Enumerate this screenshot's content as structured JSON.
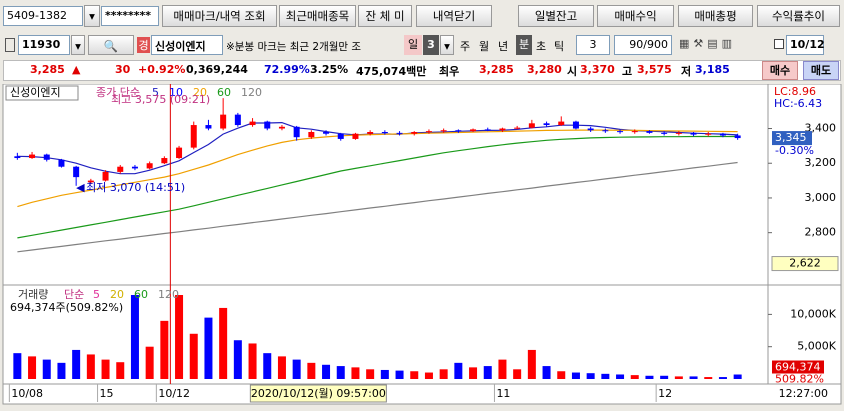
{
  "toolbar": {
    "account": "5409-1382",
    "password": "********",
    "buttons": [
      "매매마크/내역 조회",
      "최근매매종목",
      "잔 체 미",
      "내역닫기",
      "일별잔고",
      "매매수익",
      "매매총평",
      "수익률추이"
    ],
    "code": "11930",
    "badge": "경",
    "stock_name": "신성이엔지",
    "note": "※분봉 마크는 최근 2개월만 조",
    "period": "일",
    "period_num": "3",
    "tabs": [
      "주",
      "월",
      "년",
      "분",
      "초",
      "틱"
    ],
    "interval": "3",
    "count": "90/900",
    "date": "10/12"
  },
  "quote": {
    "price": "3,285",
    "arrow": "▲",
    "change": "30",
    "change_pct": "+0.92%",
    "volume": "0,369,244",
    "ratio": "72.99%",
    "turnover": "3.25%",
    "amount": "475,074백만",
    "best": "최우",
    "ask": "3,285",
    "bid": "3,280",
    "open_label": "시",
    "open": "3,370",
    "high_label": "고",
    "high": "3,575",
    "low_label": "저",
    "low": "3,185",
    "buy": "매수",
    "sell": "매도"
  },
  "crosshair": {
    "time": "2020/10/12(월) 09:57:00",
    "right_time": "12:27:00"
  },
  "chart_data": [
    {
      "type": "candlestick",
      "title": "신성이엔지",
      "legend_prefix": "종가 단순",
      "legend_extra": {
        "name": "10",
        "color": "#0000ff"
      },
      "ylim": [
        2510,
        3645
      ],
      "yticks": [
        {
          "value": 3400,
          "label": "3,400"
        },
        {
          "value": 3200,
          "label": "3,200"
        },
        {
          "value": 3000,
          "label": "3,000"
        },
        {
          "value": 2800,
          "label": "2,800"
        }
      ],
      "up_color": "#ff0000",
      "down_color": "#0000ff",
      "open": [
        3240,
        3230,
        3250,
        3220,
        3180,
        3090,
        3100,
        3150,
        3180,
        3170,
        3200,
        3230,
        3290,
        3420,
        3400,
        3480,
        3420,
        3440,
        3400,
        3410,
        3350,
        3380,
        3370,
        3340,
        3370,
        3380,
        3375,
        3370,
        3380,
        3385,
        3390,
        3385,
        3395,
        3390,
        3400,
        3405,
        3430,
        3420,
        3440,
        3400,
        3390,
        3385,
        3380,
        3385,
        3375,
        3370,
        3375,
        3365,
        3370,
        3360
      ],
      "high": [
        3260,
        3265,
        3255,
        3225,
        3185,
        3110,
        3160,
        3190,
        3190,
        3210,
        3240,
        3300,
        3440,
        3450,
        3575,
        3490,
        3460,
        3445,
        3420,
        3415,
        3390,
        3390,
        3375,
        3375,
        3390,
        3390,
        3385,
        3385,
        3395,
        3400,
        3395,
        3400,
        3405,
        3405,
        3415,
        3450,
        3440,
        3470,
        3445,
        3410,
        3400,
        3395,
        3395,
        3390,
        3385,
        3385,
        3380,
        3380,
        3375,
        3370
      ],
      "low": [
        3220,
        3225,
        3210,
        3175,
        3070,
        3080,
        3095,
        3140,
        3160,
        3165,
        3195,
        3225,
        3280,
        3390,
        3390,
        3410,
        3410,
        3390,
        3390,
        3330,
        3340,
        3360,
        3330,
        3335,
        3360,
        3365,
        3360,
        3360,
        3370,
        3375,
        3375,
        3380,
        3385,
        3380,
        3395,
        3400,
        3410,
        3415,
        3395,
        3380,
        3375,
        3370,
        3370,
        3370,
        3360,
        3360,
        3355,
        3355,
        3350,
        3335
      ],
      "close": [
        3230,
        3250,
        3220,
        3180,
        3120,
        3100,
        3150,
        3180,
        3170,
        3200,
        3230,
        3290,
        3420,
        3400,
        3480,
        3420,
        3440,
        3400,
        3410,
        3350,
        3380,
        3370,
        3340,
        3370,
        3380,
        3375,
        3370,
        3380,
        3385,
        3390,
        3385,
        3395,
        3390,
        3400,
        3405,
        3430,
        3420,
        3440,
        3400,
        3390,
        3385,
        3380,
        3385,
        3375,
        3370,
        3375,
        3365,
        3370,
        3360,
        3345
      ],
      "series": [
        {
          "name": "5",
          "color": "#2020c0",
          "values": [
            3240,
            3238,
            3232,
            3220,
            3200,
            3174,
            3154,
            3140,
            3140,
            3160,
            3186,
            3214,
            3262,
            3308,
            3368,
            3402,
            3432,
            3432,
            3434,
            3404,
            3396,
            3382,
            3370,
            3364,
            3368,
            3369,
            3367,
            3375,
            3378,
            3380,
            3384,
            3387,
            3389,
            3390,
            3395,
            3404,
            3410,
            3419,
            3419,
            3417,
            3407,
            3395,
            3388,
            3385,
            3381,
            3377,
            3373,
            3370,
            3368,
            3363
          ]
        },
        {
          "name": "20",
          "color": "#f0a000",
          "values": [
            2950,
            2975,
            2995,
            3015,
            3030,
            3045,
            3060,
            3075,
            3090,
            3105,
            3120,
            3140,
            3165,
            3190,
            3220,
            3250,
            3275,
            3300,
            3320,
            3335,
            3345,
            3352,
            3358,
            3362,
            3365,
            3367,
            3369,
            3371,
            3373,
            3375,
            3377,
            3379,
            3381,
            3383,
            3385,
            3387,
            3389,
            3390,
            3391,
            3391,
            3391,
            3390,
            3389,
            3388,
            3387,
            3386,
            3385,
            3384,
            3383,
            3382
          ]
        },
        {
          "name": "60",
          "color": "#1a9a1a",
          "values": [
            2770,
            2785,
            2800,
            2815,
            2830,
            2845,
            2860,
            2875,
            2890,
            2905,
            2920,
            2935,
            2955,
            2975,
            2995,
            3015,
            3035,
            3055,
            3075,
            3095,
            3115,
            3135,
            3155,
            3170,
            3185,
            3200,
            3215,
            3230,
            3245,
            3260,
            3272,
            3284,
            3296,
            3306,
            3316,
            3324,
            3332,
            3338,
            3342,
            3346,
            3348,
            3350,
            3351,
            3352,
            3353,
            3353,
            3354,
            3354,
            3354,
            3354
          ]
        },
        {
          "name": "120",
          "color": "#808080",
          "values": [
            2690,
            2700,
            2711,
            2721,
            2732,
            2742,
            2753,
            2763,
            2774,
            2784,
            2795,
            2805,
            2816,
            2826,
            2837,
            2847,
            2858,
            2868,
            2879,
            2889,
            2900,
            2910,
            2921,
            2931,
            2942,
            2952,
            2963,
            2973,
            2984,
            2994,
            3005,
            3015,
            3026,
            3036,
            3047,
            3057,
            3068,
            3078,
            3089,
            3099,
            3110,
            3120,
            3131,
            3141,
            3152,
            3162,
            3173,
            3183,
            3194,
            3204
          ]
        }
      ],
      "high_note": "최고 3,575 (09:21)",
      "low_note": "최저 3,070 (14:51)",
      "lc": "LC:8.96",
      "hc": "HC:-6.43",
      "last_label": "3,345",
      "last_change": "-0.30%",
      "marker": {
        "value": 2622,
        "label": "2,622"
      }
    },
    {
      "type": "bar",
      "title": "거래량",
      "legend_prefix": "단순",
      "ma_legend": [
        {
          "name": "5",
          "color": "#e0309a"
        },
        {
          "name": "20",
          "color": "#d0b000"
        },
        {
          "name": "60",
          "color": "#1a9a1a"
        },
        {
          "name": "120",
          "color": "#808080"
        }
      ],
      "ylim": [
        0,
        14240
      ],
      "yticks": [
        {
          "value": 10000,
          "label": "10,000K"
        },
        {
          "value": 5000,
          "label": "5,000K"
        }
      ],
      "categories": [
        "10/08",
        null,
        null,
        null,
        null,
        null,
        "15",
        null,
        null,
        null,
        "10/12",
        null,
        null,
        null,
        null,
        null,
        null,
        null,
        null,
        null,
        null,
        null,
        null,
        null,
        null,
        null,
        null,
        null,
        null,
        null,
        null,
        null,
        null,
        "11",
        null,
        null,
        null,
        null,
        null,
        null,
        null,
        null,
        null,
        null,
        "12",
        null,
        null,
        null,
        null,
        null
      ],
      "values": [
        4000,
        3500,
        3000,
        2500,
        4500,
        3800,
        3000,
        2600,
        13000,
        5000,
        9000,
        13000,
        7000,
        9500,
        11000,
        6000,
        5500,
        4000,
        3500,
        3000,
        2500,
        2200,
        2000,
        1800,
        1500,
        1400,
        1300,
        1200,
        1000,
        1500,
        2500,
        1800,
        2000,
        3000,
        1500,
        4500,
        2000,
        1200,
        1000,
        900,
        800,
        700,
        600,
        500,
        500,
        400,
        400,
        300,
        300,
        694.374
      ],
      "summary": "694,374주(509.82%)",
      "last_label": "694,374",
      "last_pct": "509.82%"
    }
  ]
}
